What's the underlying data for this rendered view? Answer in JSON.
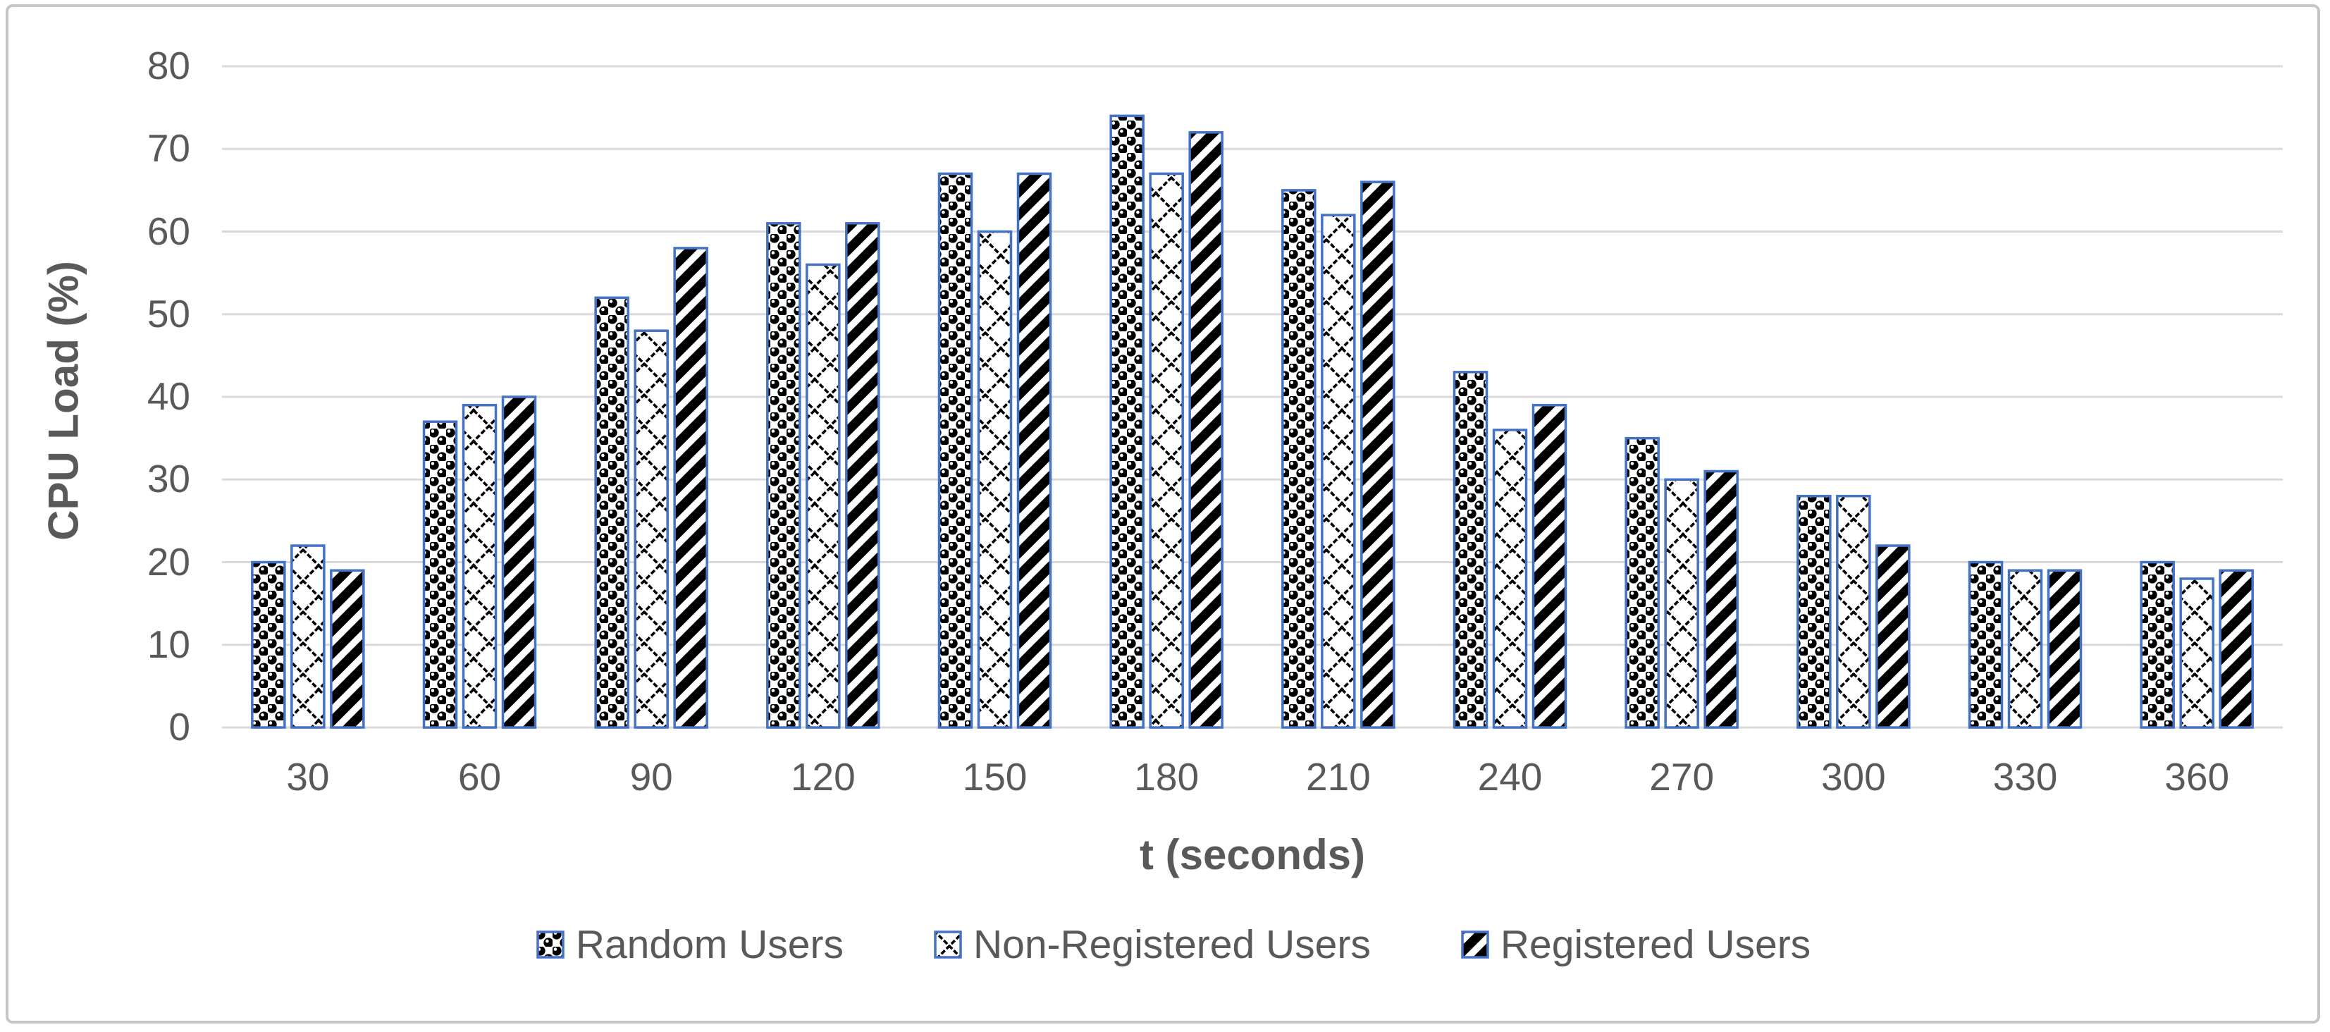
{
  "figure": {
    "type_label": "clustered-bar-chart",
    "background": "#ffffff",
    "frame_color": "#c6c6c6"
  },
  "chart_data": {
    "type": "bar",
    "title": "",
    "xlabel": "t (seconds)",
    "ylabel": "CPU Load (%)",
    "categories": [
      "30",
      "60",
      "90",
      "120",
      "150",
      "180",
      "210",
      "240",
      "270",
      "300",
      "330",
      "360"
    ],
    "series": [
      {
        "name": "Random Users",
        "pattern": "sphere",
        "values": [
          20,
          37,
          52,
          61,
          67,
          74,
          65,
          43,
          35,
          28,
          20,
          20
        ]
      },
      {
        "name": "Non-Registered Users",
        "pattern": "outlined-diamond",
        "values": [
          22,
          39,
          48,
          56,
          60,
          67,
          62,
          36,
          30,
          28,
          19,
          18
        ]
      },
      {
        "name": "Registered Users",
        "pattern": "wide-upward-diagonal",
        "values": [
          19,
          40,
          58,
          61,
          67,
          72,
          66,
          39,
          31,
          22,
          19,
          19
        ]
      }
    ],
    "ylim": [
      0,
      80
    ],
    "ytick_step": 10,
    "yticks": [
      "0",
      "10",
      "20",
      "30",
      "40",
      "50",
      "60",
      "70",
      "80"
    ],
    "grid": true,
    "legend_position": "bottom",
    "bar_border_color": "#4472C4",
    "pattern_foreground": "#000000",
    "pattern_background": "#ffffff",
    "gridline_color": "#d9d9d9",
    "text_color": "#595959"
  }
}
